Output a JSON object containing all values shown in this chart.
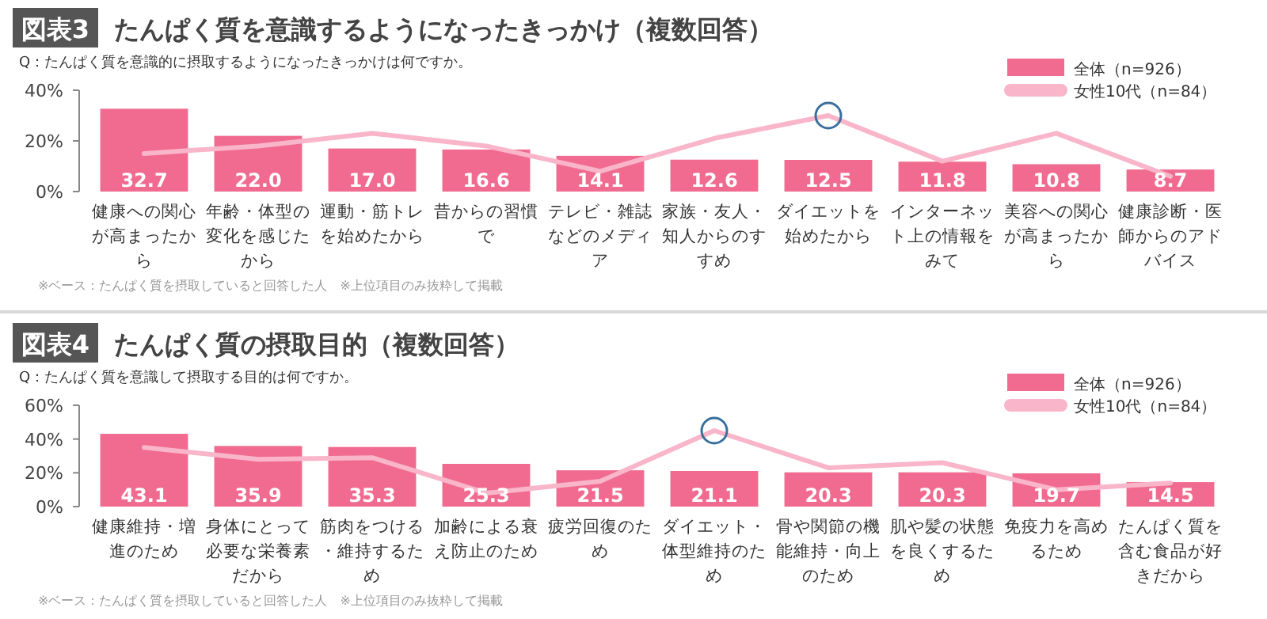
{
  "chart_data": [
    {
      "type": "bar",
      "title": "図表3",
      "subtitle": "たんぱく質を意識するようになったきっかけ（複数回答）",
      "annotations": [
        "Q：たんぱく質を意識的に摂取するようになったきっかけは何ですか。",
        "※ベース：たんぱく質を摂取していると回答した人　※上位項目のみ抜粋して掲載"
      ],
      "categories": [
        "健康への関心が高まったから",
        "年齢・体型の変化を感じたから",
        "運動・筋トレを始めたから",
        "昔からの習慣で",
        "テレビ・雑誌などのメディア",
        "家族・友人・知人からのすすめ",
        "ダイエットを始めたから",
        "インターネット上の情報をみて",
        "美容への関心が高まったから",
        "健康診断・医師からのアドバイス"
      ],
      "series": [
        {
          "name": "全体（n=926）",
          "color": "#f06b8f",
          "values": [
            32.7,
            22.0,
            17.0,
            16.6,
            14.1,
            12.6,
            12.5,
            11.8,
            10.8,
            8.7
          ],
          "value_labels": [
            "32.7",
            "22.0",
            "17.0",
            "16.6",
            "14.1",
            "12.6",
            "12.5",
            "11.8",
            "10.8",
            "8.7"
          ]
        },
        {
          "name": "女性10代（n=84）",
          "type": "line",
          "color": "#f9b5c9",
          "values": [
            15,
            18,
            23,
            18,
            8,
            21,
            30,
            12,
            23,
            6
          ]
        }
      ],
      "ylim": [
        0,
        40
      ],
      "yticks": [
        {
          "value": 0,
          "label": "0%"
        },
        {
          "value": 20,
          "label": "20%"
        },
        {
          "value": 40,
          "label": "40%"
        }
      ],
      "legend": "top right"
    },
    {
      "type": "bar",
      "title": "図表4",
      "subtitle": "たんぱく質の摂取目的（複数回答）",
      "annotations": [
        "Q：たんぱく質を意識して摂取する目的は何ですか。",
        "※ベース：たんぱく質を摂取していると回答した人　※上位項目のみ抜粋して掲載"
      ],
      "categories": [
        "健康維持・増進のため",
        "身体にとって必要な栄養素だから",
        "筋肉をつける・維持するため",
        "加齢による衰え防止のため",
        "疲労回復のため",
        "ダイエット・体型維持のため",
        "骨や関節の機能維持・向上のため",
        "肌や髪の状態を良くするため",
        "免疫力を高めるため",
        "たんぱく質を含む食品が好きだから"
      ],
      "series": [
        {
          "name": "全体（n=926）",
          "color": "#f06b8f",
          "values": [
            43.1,
            35.9,
            35.3,
            25.3,
            21.5,
            21.1,
            20.3,
            20.3,
            19.7,
            14.5
          ],
          "value_labels": [
            "43.1",
            "35.9",
            "35.3",
            "25.3",
            "21.5",
            "21.1",
            "20.3",
            "20.3",
            "19.7",
            "14.5"
          ]
        },
        {
          "name": "女性10代（n=84）",
          "type": "line",
          "color": "#f9b5c9",
          "values": [
            35,
            28,
            29,
            8,
            15,
            45,
            23,
            26,
            10,
            14
          ]
        }
      ],
      "ylim": [
        0,
        60
      ],
      "yticks": [
        {
          "value": 0,
          "label": "0%"
        },
        {
          "value": 20,
          "label": "20%"
        },
        {
          "value": 40,
          "label": "40%"
        },
        {
          "value": 60,
          "label": "60%"
        }
      ],
      "legend": "top right"
    }
  ]
}
